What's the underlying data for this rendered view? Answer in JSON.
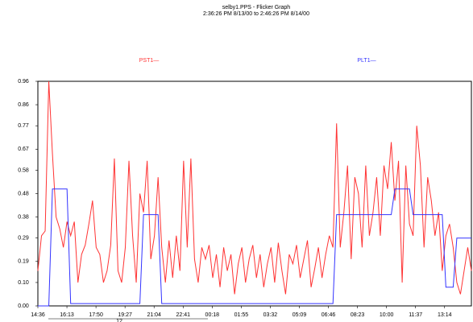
{
  "chart_data": {
    "type": "line",
    "title": "selby1.PPS - Flicker Graph",
    "subtitle": "2:36:26 PM 8/13/00 to 2:46:26 PM 8/14/00",
    "annotation": "12",
    "xticks": [
      "14:36",
      "16:13",
      "17:50",
      "19:27",
      "21:04",
      "22:41",
      "00:18",
      "01:55",
      "03:32",
      "05:09",
      "06:46",
      "08:23",
      "10:00",
      "11:37",
      "13:14"
    ],
    "ylim": [
      0,
      0.96
    ],
    "yticks": [
      {
        "value": 0,
        "label": "0.00"
      },
      {
        "value": 0.1,
        "label": "0.10"
      },
      0.19,
      0.29,
      0.38,
      0.48,
      0.58,
      0.67,
      0.77,
      0.86,
      0.96
    ],
    "series": [
      {
        "name": "PST1—",
        "color": "#ff3333",
        "values": [
          0.15,
          0.3,
          0.32,
          0.96,
          0.65,
          0.38,
          0.33,
          0.25,
          0.36,
          0.3,
          0.36,
          0.1,
          0.22,
          0.26,
          0.35,
          0.45,
          0.25,
          0.22,
          0.1,
          0.15,
          0.26,
          0.63,
          0.15,
          0.1,
          0.25,
          0.62,
          0.3,
          0.1,
          0.48,
          0.4,
          0.62,
          0.2,
          0.3,
          0.55,
          0.25,
          0.1,
          0.28,
          0.12,
          0.3,
          0.15,
          0.62,
          0.25,
          0.63,
          0.2,
          0.1,
          0.25,
          0.2,
          0.26,
          0.12,
          0.22,
          0.08,
          0.25,
          0.15,
          0.22,
          0.05,
          0.18,
          0.25,
          0.1,
          0.2,
          0.26,
          0.12,
          0.22,
          0.08,
          0.18,
          0.25,
          0.1,
          0.27,
          0.15,
          0.05,
          0.22,
          0.18,
          0.26,
          0.12,
          0.2,
          0.28,
          0.08,
          0.16,
          0.25,
          0.12,
          0.22,
          0.3,
          0.25,
          0.78,
          0.25,
          0.4,
          0.6,
          0.2,
          0.55,
          0.48,
          0.25,
          0.6,
          0.3,
          0.4,
          0.55,
          0.3,
          0.6,
          0.5,
          0.7,
          0.45,
          0.62,
          0.1,
          0.6,
          0.35,
          0.3,
          0.77,
          0.6,
          0.25,
          0.55,
          0.45,
          0.3,
          0.4,
          0.15,
          0.3,
          0.35,
          0.25,
          0.1,
          0.05,
          0.15,
          0.25,
          0.15
        ]
      },
      {
        "name": "PLT1—",
        "color": "#3333ff",
        "values": [
          0,
          0,
          0,
          0,
          0.5,
          0.5,
          0.5,
          0.5,
          0.5,
          0.01,
          0.01,
          0.01,
          0.01,
          0.01,
          0.01,
          0.01,
          0.01,
          0.01,
          0.01,
          0.01,
          0.01,
          0.01,
          0.01,
          0.01,
          0.01,
          0.01,
          0.01,
          0.01,
          0.01,
          0.39,
          0.39,
          0.39,
          0.39,
          0.39,
          0.01,
          0.01,
          0.01,
          0.01,
          0.01,
          0.01,
          0.01,
          0.01,
          0.01,
          0.01,
          0.01,
          0.01,
          0.01,
          0.01,
          0.01,
          0.01,
          0.01,
          0.01,
          0.01,
          0.01,
          0.01,
          0.01,
          0.01,
          0.01,
          0.01,
          0.01,
          0.01,
          0.01,
          0.01,
          0.01,
          0.01,
          0.01,
          0.01,
          0.01,
          0.01,
          0.01,
          0.01,
          0.01,
          0.01,
          0.01,
          0.01,
          0.01,
          0.01,
          0.01,
          0.01,
          0.01,
          0.01,
          0.01,
          0.39,
          0.39,
          0.39,
          0.39,
          0.39,
          0.39,
          0.39,
          0.39,
          0.39,
          0.39,
          0.39,
          0.39,
          0.39,
          0.39,
          0.39,
          0.39,
          0.5,
          0.5,
          0.5,
          0.5,
          0.5,
          0.39,
          0.39,
          0.39,
          0.39,
          0.39,
          0.39,
          0.39,
          0.39,
          0.39,
          0.08,
          0.08,
          0.08,
          0.29,
          0.29,
          0.29,
          0.29,
          0.29
        ]
      }
    ]
  }
}
